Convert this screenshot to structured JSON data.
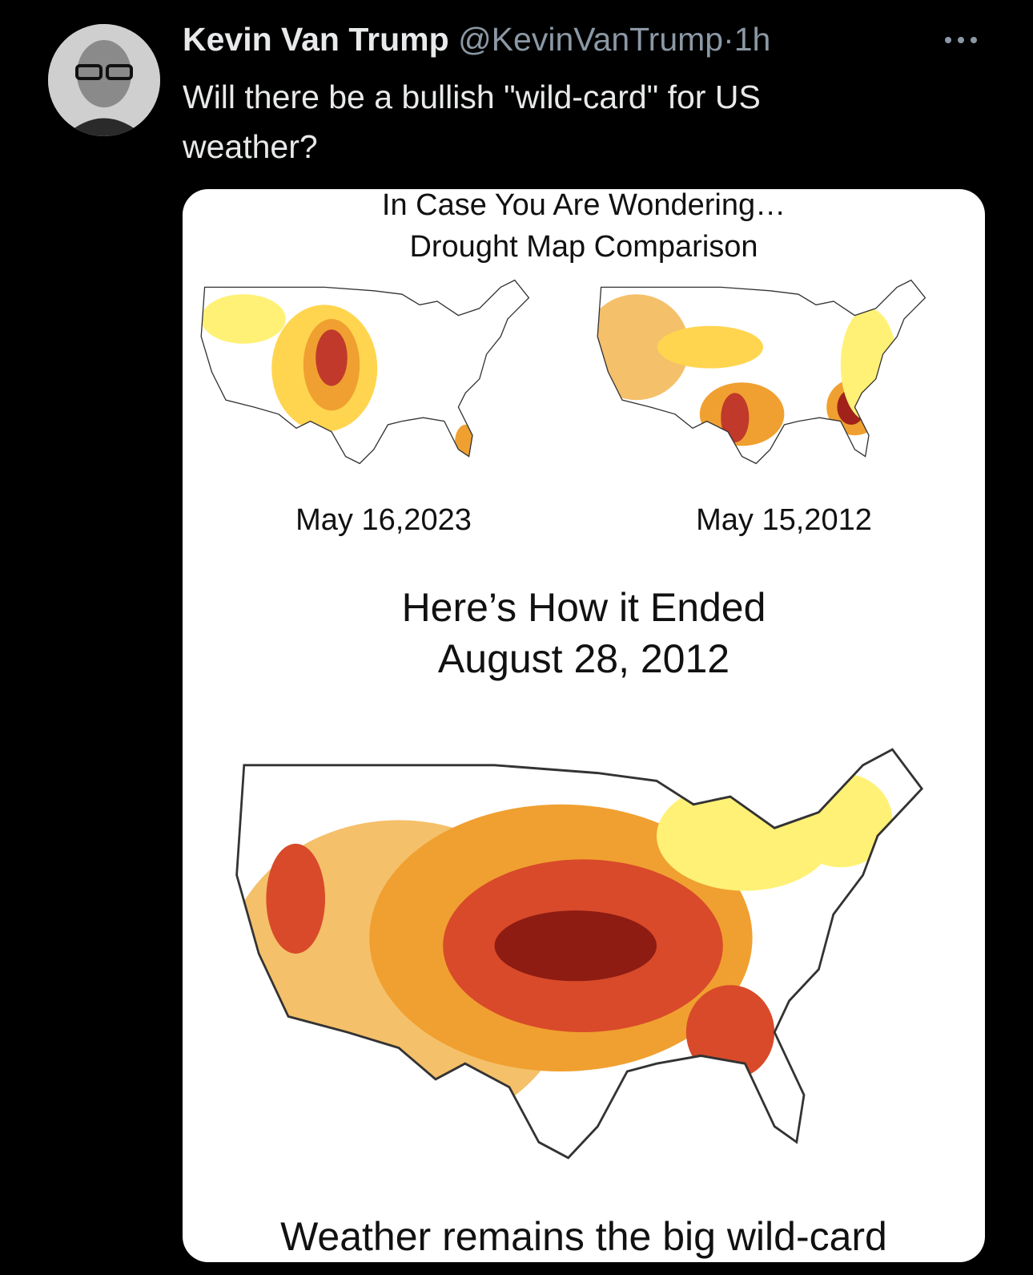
{
  "tweet": {
    "author": {
      "name": "Kevin Van Trump",
      "handle": "@KevinVanTrump",
      "separator": "·",
      "time": "1h"
    },
    "text": "Will there be a bullish \"wild-card\" for US weather?",
    "image": {
      "title_lines": [
        "In Case You Are Wondering…",
        "Drought Map Comparison"
      ],
      "left_map_label": "May 16,2023",
      "right_map_label": "May 15,2012",
      "heading_lines": [
        "Here’s How it Ended",
        "August 28, 2012"
      ],
      "caption": "Weather remains the big wild-card"
    }
  }
}
